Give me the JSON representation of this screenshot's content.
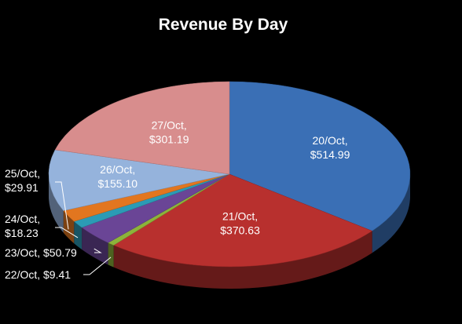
{
  "chart_data": {
    "type": "pie",
    "title": "Revenue By Day",
    "currency_prefix": "$",
    "colors": {
      "background": "#000000",
      "text": "#ffffff",
      "leader_line": "#ffffff"
    },
    "slices": [
      {
        "label": "20/Oct",
        "value": 514.99,
        "color": "#3a6fb5"
      },
      {
        "label": "21/Oct",
        "value": 370.63,
        "color": "#b8302e"
      },
      {
        "label": "22/Oct",
        "value": 9.41,
        "color": "#8cb33a"
      },
      {
        "label": "23/Oct",
        "value": 50.79,
        "color": "#6a4596"
      },
      {
        "label": "24/Oct",
        "value": 18.23,
        "color": "#2b9bb5"
      },
      {
        "label": "25/Oct",
        "value": 29.91,
        "color": "#e2761f"
      },
      {
        "label": "26/Oct",
        "value": 155.1,
        "color": "#95b3dc"
      },
      {
        "label": "27/Oct",
        "value": 301.19,
        "color": "#d88d8d"
      }
    ]
  }
}
